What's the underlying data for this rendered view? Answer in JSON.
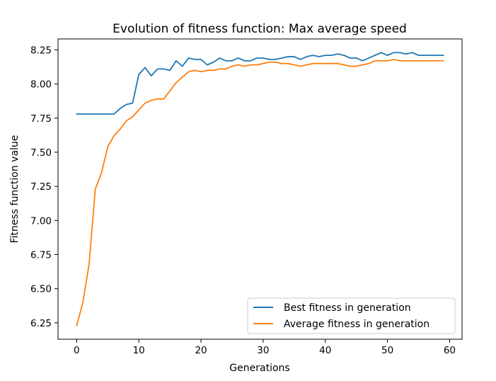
{
  "chart_data": {
    "type": "line",
    "title": "Evolution of fitness function: Max average speed",
    "xlabel": "Generations",
    "ylabel": "Fitness function value",
    "xlim": [
      -3,
      62
    ],
    "ylim": [
      6.13,
      8.33
    ],
    "xticks": [
      0,
      10,
      20,
      30,
      40,
      50,
      60
    ],
    "yticks": [
      6.25,
      6.5,
      6.75,
      7.0,
      7.25,
      7.5,
      7.75,
      8.0,
      8.25
    ],
    "ytick_labels": [
      "6.25",
      "6.50",
      "6.75",
      "7.00",
      "7.25",
      "7.50",
      "7.75",
      "8.00",
      "8.25"
    ],
    "grid": false,
    "legend_position": "lower-right",
    "x": [
      0,
      1,
      2,
      3,
      4,
      5,
      6,
      7,
      8,
      9,
      10,
      11,
      12,
      13,
      14,
      15,
      16,
      17,
      18,
      19,
      20,
      21,
      22,
      23,
      24,
      25,
      26,
      27,
      28,
      29,
      30,
      31,
      32,
      33,
      34,
      35,
      36,
      37,
      38,
      39,
      40,
      41,
      42,
      43,
      44,
      45,
      46,
      47,
      48,
      49,
      50,
      51,
      52,
      53,
      54,
      55,
      56,
      57,
      58,
      59
    ],
    "series": [
      {
        "name": "Best fitness in generation",
        "color": "#1f77b4",
        "values": [
          7.78,
          7.78,
          7.78,
          7.78,
          7.78,
          7.78,
          7.78,
          7.82,
          7.85,
          7.86,
          8.07,
          8.12,
          8.06,
          8.11,
          8.11,
          8.1,
          8.17,
          8.13,
          8.19,
          8.18,
          8.18,
          8.14,
          8.16,
          8.19,
          8.17,
          8.17,
          8.19,
          8.17,
          8.17,
          8.19,
          8.19,
          8.18,
          8.18,
          8.19,
          8.2,
          8.2,
          8.18,
          8.2,
          8.21,
          8.2,
          8.21,
          8.21,
          8.22,
          8.21,
          8.19,
          8.19,
          8.17,
          8.19,
          8.21,
          8.23,
          8.21,
          8.23,
          8.23,
          8.22,
          8.23,
          8.21,
          8.21,
          8.21,
          8.21,
          8.21
        ]
      },
      {
        "name": "Average fitness in generation",
        "color": "#ff7f0e",
        "values": [
          6.23,
          6.4,
          6.68,
          7.23,
          7.35,
          7.54,
          7.62,
          7.67,
          7.73,
          7.76,
          7.81,
          7.86,
          7.88,
          7.89,
          7.89,
          7.95,
          8.01,
          8.05,
          8.09,
          8.1,
          8.09,
          8.1,
          8.1,
          8.11,
          8.11,
          8.13,
          8.14,
          8.13,
          8.14,
          8.14,
          8.15,
          8.16,
          8.16,
          8.15,
          8.15,
          8.14,
          8.13,
          8.14,
          8.15,
          8.15,
          8.15,
          8.15,
          8.15,
          8.14,
          8.13,
          8.13,
          8.14,
          8.15,
          8.17,
          8.17,
          8.17,
          8.18,
          8.17,
          8.17,
          8.17,
          8.17,
          8.17,
          8.17,
          8.17,
          8.17
        ]
      }
    ]
  }
}
